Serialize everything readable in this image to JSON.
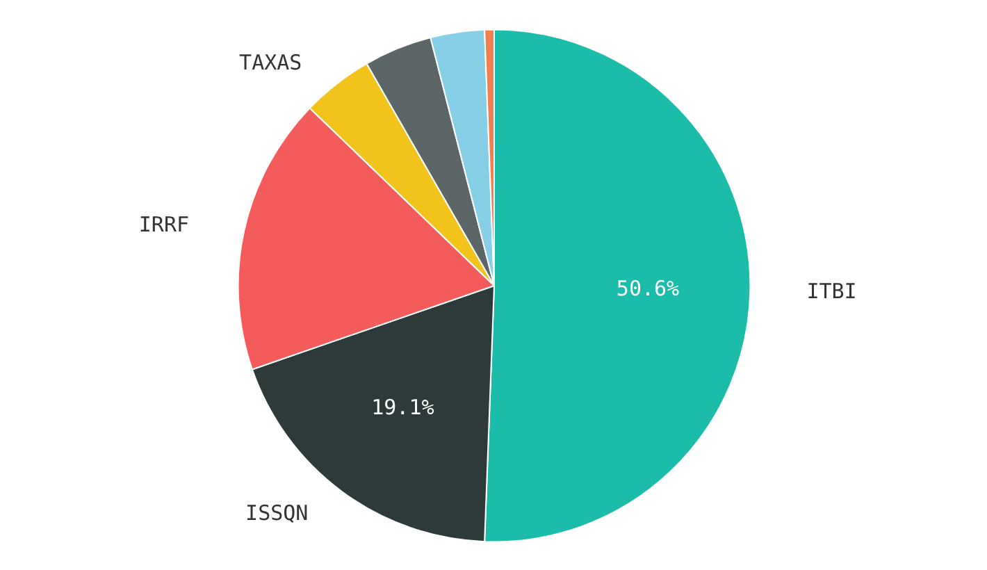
{
  "chart_data": {
    "type": "pie",
    "categories": [
      "ITBI",
      "ISSQN",
      "IRRF",
      "TAXAS",
      null,
      null,
      null
    ],
    "values": [
      50.6,
      19.1,
      17.5,
      4.5,
      4.3,
      3.4,
      0.6
    ],
    "colors": [
      "#1bbcaa",
      "#2e3a3a",
      "#f45b5b",
      "#f2c31a",
      "#5d6666",
      "#86cfe6",
      "#f08050"
    ],
    "value_labels": [
      "50.6%",
      "19.1%",
      null,
      null,
      null,
      null,
      null
    ]
  }
}
